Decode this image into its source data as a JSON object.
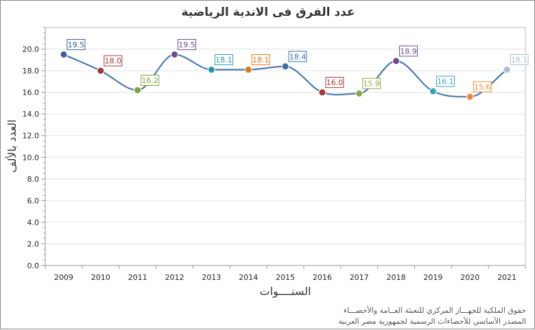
{
  "chart_data": {
    "type": "line",
    "title": "عدد الفرق فى الاندية الرياضية",
    "xlabel": "السنــــوات",
    "ylabel": "العدد بالألف",
    "categories": [
      "2009",
      "2010",
      "2011",
      "2012",
      "2013",
      "2014",
      "2015",
      "2016",
      "2017",
      "2018",
      "2019",
      "2020",
      "2021"
    ],
    "values": [
      19.5,
      18.0,
      16.2,
      19.5,
      18.1,
      18.1,
      18.4,
      16.0,
      15.9,
      18.9,
      16.1,
      15.6,
      18.1
    ],
    "value_labels": [
      "19.5",
      "18.0",
      "16.2",
      "19.5",
      "18.1",
      "18.1",
      "18.4",
      "16.0",
      "15.9",
      "18.9",
      "16.1",
      "15.6",
      "18.1"
    ],
    "ylim": [
      0,
      22
    ],
    "yticks": [
      "0.0",
      "2.0",
      "4.0",
      "6.0",
      "8.0",
      "10.0",
      "12.0",
      "14.0",
      "16.0",
      "18.0",
      "20.0"
    ],
    "grid": true,
    "legend": "none",
    "line_color": "#4a79ad",
    "point_colors": [
      "#3a5f95",
      "#a33a3a",
      "#7ea33a",
      "#6e4a8c",
      "#2e95a8",
      "#e07818",
      "#3a6ea8",
      "#a83a3a",
      "#8aa845",
      "#6e4a8c",
      "#3aa0b8",
      "#f08a30",
      "#a8bcd8"
    ]
  },
  "footer": {
    "line1": "حقوق الملكية للجهـــاز المركزي للتعبئة العــامة والأحصـــاء",
    "line2": "المصدر الأساسي للأحصاءات الرسمية لجمهورية مصر العربية"
  }
}
